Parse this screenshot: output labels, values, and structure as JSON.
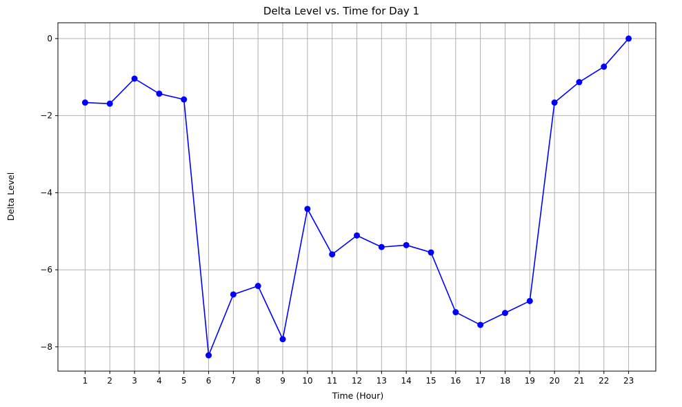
{
  "chart_data": {
    "type": "line",
    "title": "Delta Level vs. Time for Day 1",
    "xlabel": "Time (Hour)",
    "ylabel": "Delta Level",
    "x": [
      1,
      2,
      3,
      4,
      5,
      6,
      7,
      8,
      9,
      10,
      11,
      12,
      13,
      14,
      15,
      16,
      17,
      18,
      19,
      20,
      21,
      22,
      23
    ],
    "series": [
      {
        "values": [
          -1.66,
          -1.69,
          -1.04,
          -1.43,
          -1.58,
          -8.22,
          -6.64,
          -6.42,
          -7.8,
          -4.42,
          -5.6,
          -5.11,
          -5.41,
          -5.36,
          -5.55,
          -7.1,
          -7.43,
          -7.12,
          -6.81,
          -1.66,
          -1.13,
          -0.73,
          0.0
        ],
        "color": "#0000ff",
        "marker": "circle"
      }
    ],
    "xticks": [
      1,
      2,
      3,
      4,
      5,
      6,
      7,
      8,
      9,
      10,
      11,
      12,
      13,
      14,
      15,
      16,
      17,
      18,
      19,
      20,
      21,
      22,
      23
    ],
    "yticks": [
      0,
      -2,
      -4,
      -6,
      -8
    ],
    "ytick_labels": [
      "0",
      "−2",
      "−4",
      "−6",
      "−8"
    ],
    "xlim": [
      -0.1,
      24.1
    ],
    "ylim": [
      -8.63,
      0.41
    ],
    "grid": true,
    "grid_color": "#b0b0b0"
  }
}
